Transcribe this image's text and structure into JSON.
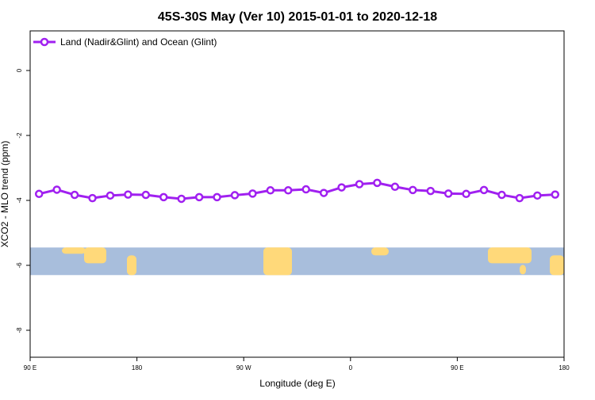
{
  "chart_data": {
    "type": "line",
    "title": "45S-30S May (Ver 10)   2015-01-01 to 2020-12-18",
    "xlabel": "Longitude (deg E)",
    "ylabel": "XCO2 - MLO trend (ppm)",
    "xlim": [
      90,
      540
    ],
    "ylim": [
      -8.83,
      1.22
    ],
    "xticks": [
      90,
      180,
      270,
      360,
      450,
      540
    ],
    "xtick_labels": [
      "90 E",
      "180",
      "90 W",
      "0",
      "90 E",
      "180"
    ],
    "yticks": [
      0,
      -2,
      -4,
      -6,
      -8
    ],
    "ytick_labels": [
      "0",
      "-2",
      "-4",
      "-6",
      "-8"
    ],
    "legend_placement": "top-left",
    "grid": false,
    "series": [
      {
        "name": "Land (Nadir&Glint) and Ocean (Glint)",
        "color": "#a020f0",
        "x": [
          97.5,
          112.5,
          127.5,
          142.5,
          157.5,
          172.5,
          187.5,
          202.5,
          217.5,
          232.5,
          247.5,
          262.5,
          277.5,
          292.5,
          307.5,
          322.5,
          337.5,
          352.5,
          367.5,
          382.5,
          397.5,
          412.5,
          427.5,
          442.5,
          457.5,
          472.5,
          487.5,
          502.5,
          517.5,
          532.5
        ],
        "values": [
          -3.8,
          -3.67,
          -3.83,
          -3.93,
          -3.85,
          -3.82,
          -3.83,
          -3.9,
          -3.95,
          -3.9,
          -3.9,
          -3.84,
          -3.79,
          -3.69,
          -3.69,
          -3.66,
          -3.77,
          -3.6,
          -3.5,
          -3.46,
          -3.58,
          -3.68,
          -3.71,
          -3.79,
          -3.8,
          -3.68,
          -3.83,
          -3.93,
          -3.85,
          -3.82
        ]
      }
    ],
    "map_strip": {
      "ocean_color": "#a8bedc",
      "land_color": "#ffd97a",
      "y_range": [
        -5.45,
        -6.3
      ]
    }
  }
}
